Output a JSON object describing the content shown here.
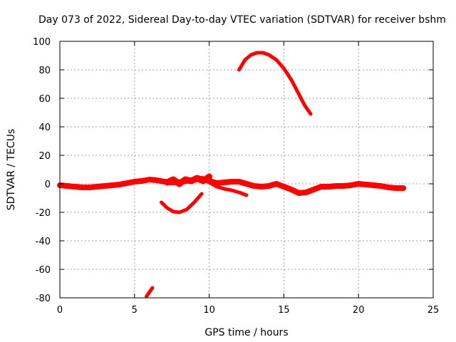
{
  "chart_data": {
    "type": "line",
    "title": "Day 073 of 2022, Sidereal Day-to-day VTEC variation (SDTVAR) for receiver bshm",
    "xlabel": "GPS time / hours",
    "ylabel": "SDTVAR / TECUs",
    "xlim": [
      0,
      25
    ],
    "ylim": [
      -80,
      100
    ],
    "xticks": [
      0,
      5,
      10,
      15,
      20,
      25
    ],
    "yticks": [
      -80,
      -60,
      -40,
      -20,
      0,
      20,
      40,
      60,
      80,
      100
    ],
    "grid": true,
    "series_color": "#ff0000",
    "series": [
      {
        "name": "main-track",
        "x": [
          0,
          0.5,
          1,
          1.5,
          2,
          2.5,
          3,
          3.5,
          4,
          4.5,
          5,
          5.5,
          6,
          6.5,
          7,
          7.5,
          8,
          8.5,
          9,
          9.5,
          10,
          10.5,
          11,
          11.5,
          12,
          12.5,
          13,
          13.5,
          14,
          14.5,
          15,
          15.5,
          16,
          16.5,
          17,
          17.5,
          18,
          18.5,
          19,
          19.5,
          20,
          20.5,
          21,
          21.5,
          22,
          22.5,
          23
        ],
        "y": [
          -1,
          -1.5,
          -2,
          -2.5,
          -2.5,
          -2,
          -1.5,
          -1,
          -0.5,
          0.5,
          1.5,
          2,
          3,
          2.5,
          1.5,
          1,
          1,
          2,
          3,
          3.5,
          2,
          0.5,
          1,
          1.5,
          1.5,
          0,
          -1.5,
          -2,
          -1.5,
          0,
          -2,
          -4,
          -6.5,
          -6,
          -4,
          -2,
          -2,
          -1.5,
          -1.5,
          -1,
          0,
          -0.5,
          -1,
          -1.5,
          -2.5,
          -3,
          -3
        ],
        "width": 8
      },
      {
        "name": "noisy-band",
        "x": [
          7.2,
          7.6,
          8,
          8.4,
          8.8,
          9.2,
          9.6,
          10
        ],
        "y": [
          1,
          3,
          0,
          3,
          2,
          4,
          2,
          5
        ],
        "width": 9
      },
      {
        "name": "lower-branch",
        "x": [
          9.5,
          10,
          10.5,
          11,
          11.5,
          12,
          12.5
        ],
        "y": [
          4,
          1,
          -2,
          -3.5,
          -4.5,
          -6,
          -8
        ],
        "width": 5
      },
      {
        "name": "dip-arc",
        "x": [
          6.8,
          7.2,
          7.6,
          8,
          8.5,
          9,
          9.5
        ],
        "y": [
          -13,
          -17,
          -19.5,
          -20,
          -18,
          -13,
          -7
        ],
        "width": 5
      },
      {
        "name": "peak-arc",
        "x": [
          12,
          12.4,
          12.8,
          13.2,
          13.6,
          14,
          14.5,
          15,
          15.5,
          16,
          16.4,
          16.8
        ],
        "y": [
          80,
          87,
          90.5,
          92,
          92,
          90.5,
          87,
          81,
          73,
          63,
          55,
          49
        ],
        "width": 5
      },
      {
        "name": "bottom-fragment",
        "x": [
          5.8,
          6.0,
          6.2
        ],
        "y": [
          -79,
          -76,
          -73
        ],
        "width": 5
      }
    ]
  }
}
